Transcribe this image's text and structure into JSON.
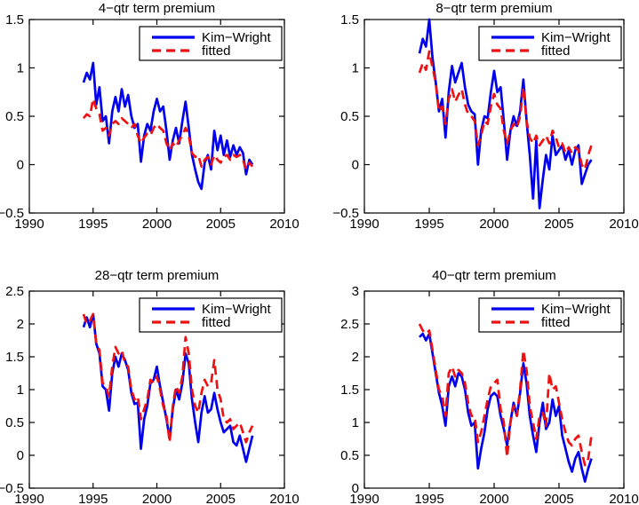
{
  "figure": {
    "background": "#ffffff",
    "line_colors": {
      "kim_wright": "#0000ee",
      "fitted": "#ee1111"
    }
  },
  "chart_data": [
    {
      "type": "line",
      "title": "4−qtr term premium",
      "xlabel": "",
      "ylabel": "",
      "xlim": [
        1990,
        2010
      ],
      "ylim": [
        -0.5,
        1.5
      ],
      "xticks": [
        1990,
        1995,
        2000,
        2005,
        2010
      ],
      "xtick_labels": [
        "1990",
        "1995",
        "2000",
        "2005",
        "2010"
      ],
      "yticks": [
        1.5,
        1,
        0.5,
        0,
        -0.5
      ],
      "ytick_labels": [
        "1.5",
        "1",
        "0.5",
        "0",
        "−0.5"
      ],
      "grid": false,
      "legend_position": "top-right",
      "x_start": 1994.25,
      "x_step": 0.25,
      "series": [
        {
          "id": "kim-wright",
          "name": "Kim−Wright",
          "color": "#0000ee",
          "style": "solid",
          "values": [
            0.85,
            0.95,
            0.88,
            1.05,
            0.62,
            0.8,
            0.45,
            0.5,
            0.22,
            0.55,
            0.7,
            0.55,
            0.78,
            0.6,
            0.72,
            0.5,
            0.38,
            0.42,
            0.03,
            0.3,
            0.42,
            0.35,
            0.55,
            0.68,
            0.55,
            0.6,
            0.35,
            0.05,
            0.25,
            0.38,
            0.22,
            0.45,
            0.65,
            0.38,
            0.1,
            -0.05,
            -0.18,
            -0.25,
            0.02,
            0.1,
            -0.05,
            0.35,
            0.15,
            0.3,
            0.1,
            0.25,
            0.08,
            0.2,
            0.1,
            0.18,
            0.12,
            -0.1,
            0.05,
            0.0
          ]
        },
        {
          "id": "fitted",
          "name": "fitted",
          "color": "#ee1111",
          "style": "dashed",
          "values": [
            0.48,
            0.52,
            0.5,
            0.68,
            0.58,
            0.52,
            0.35,
            0.38,
            0.3,
            0.42,
            0.45,
            0.42,
            0.48,
            0.45,
            0.42,
            0.38,
            0.42,
            0.3,
            0.22,
            0.28,
            0.32,
            0.3,
            0.38,
            0.42,
            0.38,
            0.35,
            0.22,
            0.15,
            0.22,
            0.18,
            0.25,
            0.3,
            0.38,
            0.3,
            0.12,
            0.08,
            0.1,
            -0.02,
            0.05,
            0.08,
            0.0,
            0.1,
            0.05,
            0.02,
            0.08,
            0.1,
            0.05,
            0.1,
            0.08,
            0.1,
            0.05,
            -0.05,
            0.02,
            -0.02
          ]
        }
      ]
    },
    {
      "type": "line",
      "title": "8−qtr term premium",
      "xlabel": "",
      "ylabel": "",
      "xlim": [
        1990,
        2010
      ],
      "ylim": [
        -0.5,
        1.5
      ],
      "xticks": [
        1990,
        1995,
        2000,
        2005,
        2010
      ],
      "xtick_labels": [
        "1990",
        "1995",
        "2000",
        "2005",
        "2010"
      ],
      "yticks": [
        1.5,
        1,
        0.5,
        0,
        -0.5
      ],
      "ytick_labels": [
        "1.5",
        "1",
        "0.5",
        "0",
        "−0.5"
      ],
      "grid": false,
      "legend_position": "top-right",
      "x_start": 1994.25,
      "x_step": 0.25,
      "series": [
        {
          "id": "kim-wright",
          "name": "Kim−Wright",
          "color": "#0000ee",
          "style": "solid",
          "values": [
            1.15,
            1.3,
            1.22,
            1.5,
            1.1,
            0.85,
            0.55,
            0.68,
            0.28,
            0.75,
            1.02,
            0.85,
            0.95,
            1.05,
            0.8,
            0.62,
            0.55,
            0.52,
            0.0,
            0.35,
            0.5,
            0.48,
            0.75,
            0.97,
            0.75,
            0.8,
            0.45,
            0.05,
            0.35,
            0.5,
            0.4,
            0.55,
            0.88,
            0.45,
            0.1,
            -0.35,
            0.25,
            -0.45,
            -0.15,
            0.1,
            -0.05,
            0.3,
            0.1,
            0.15,
            0.2,
            0.05,
            0.15,
            0.0,
            0.15,
            0.2,
            -0.2,
            -0.1,
            0.0,
            0.05
          ]
        },
        {
          "id": "fitted",
          "name": "fitted",
          "color": "#ee1111",
          "style": "dashed",
          "values": [
            0.95,
            1.05,
            0.98,
            1.17,
            1.0,
            0.85,
            0.55,
            0.6,
            0.42,
            0.68,
            0.78,
            0.65,
            0.72,
            0.78,
            0.62,
            0.52,
            0.5,
            0.45,
            0.2,
            0.3,
            0.45,
            0.42,
            0.6,
            0.73,
            0.62,
            0.58,
            0.35,
            0.22,
            0.35,
            0.42,
            0.38,
            0.5,
            0.8,
            0.45,
            0.28,
            0.22,
            0.3,
            0.2,
            0.25,
            0.3,
            0.22,
            0.35,
            0.28,
            0.18,
            0.22,
            0.12,
            0.18,
            0.12,
            0.18,
            0.15,
            0.0,
            -0.05,
            0.1,
            0.2
          ]
        }
      ]
    },
    {
      "type": "line",
      "title": "28−qtr term premium",
      "xlabel": "",
      "ylabel": "",
      "xlim": [
        1990,
        2010
      ],
      "ylim": [
        -0.5,
        2.5
      ],
      "xticks": [
        1990,
        1995,
        2000,
        2005,
        2010
      ],
      "xtick_labels": [
        "1990",
        "1995",
        "2000",
        "2005",
        "2010"
      ],
      "yticks": [
        2.5,
        2,
        1.5,
        1,
        0.5,
        0,
        -0.5
      ],
      "ytick_labels": [
        "2.5",
        "2",
        "1.5",
        "1",
        "0.5",
        "0",
        "−0.5"
      ],
      "grid": false,
      "legend_position": "top-right",
      "x_start": 1994.25,
      "x_step": 0.25,
      "series": [
        {
          "id": "kim-wright",
          "name": "Kim−Wright",
          "color": "#0000ee",
          "style": "solid",
          "values": [
            1.95,
            2.1,
            1.95,
            2.15,
            1.7,
            1.55,
            1.05,
            1.0,
            0.68,
            1.25,
            1.5,
            1.35,
            1.55,
            1.45,
            1.3,
            0.95,
            0.78,
            0.8,
            0.1,
            0.55,
            0.75,
            1.1,
            1.15,
            1.35,
            1.05,
            0.8,
            0.55,
            0.25,
            0.7,
            1.0,
            0.85,
            1.1,
            1.55,
            1.4,
            0.85,
            0.5,
            0.2,
            0.65,
            0.9,
            0.65,
            0.7,
            0.95,
            0.7,
            0.5,
            0.35,
            0.4,
            0.45,
            0.2,
            0.15,
            0.3,
            0.1,
            -0.1,
            0.1,
            0.3
          ]
        },
        {
          "id": "fitted",
          "name": "fitted",
          "color": "#ee1111",
          "style": "dashed",
          "values": [
            2.15,
            2.0,
            2.05,
            2.15,
            1.7,
            1.6,
            1.1,
            1.05,
            0.9,
            1.35,
            1.65,
            1.55,
            1.6,
            1.4,
            1.35,
            1.0,
            0.85,
            0.9,
            0.55,
            0.7,
            0.85,
            1.15,
            1.1,
            1.2,
            1.0,
            0.75,
            0.6,
            0.2,
            0.75,
            1.05,
            0.95,
            1.2,
            1.8,
            1.55,
            1.0,
            0.75,
            0.65,
            0.95,
            1.15,
            1.05,
            1.1,
            1.45,
            1.0,
            0.85,
            0.55,
            0.5,
            0.55,
            0.4,
            0.45,
            0.5,
            0.35,
            0.2,
            0.35,
            0.45
          ]
        }
      ]
    },
    {
      "type": "line",
      "title": "40−qtr term premium",
      "xlabel": "",
      "ylabel": "",
      "xlim": [
        1990,
        2010
      ],
      "ylim": [
        0,
        3
      ],
      "xticks": [
        1990,
        1995,
        2000,
        2005,
        2010
      ],
      "xtick_labels": [
        "1990",
        "1995",
        "2000",
        "2005",
        "2010"
      ],
      "yticks": [
        3,
        2.5,
        2,
        1.5,
        1,
        0.5,
        0
      ],
      "ytick_labels": [
        "3",
        "2.5",
        "2",
        "1.5",
        "1",
        "0.5",
        "0"
      ],
      "grid": false,
      "legend_position": "top-right",
      "x_start": 1994.25,
      "x_step": 0.25,
      "series": [
        {
          "id": "kim-wright",
          "name": "Kim−Wright",
          "color": "#0000ee",
          "style": "solid",
          "values": [
            2.3,
            2.35,
            2.25,
            2.35,
            2.05,
            1.75,
            1.45,
            1.25,
            0.95,
            1.55,
            1.7,
            1.55,
            1.75,
            1.7,
            1.5,
            1.15,
            0.95,
            1.0,
            0.3,
            0.6,
            0.85,
            1.2,
            1.4,
            1.45,
            1.4,
            1.1,
            0.9,
            0.65,
            1.0,
            1.3,
            1.1,
            1.45,
            1.9,
            1.6,
            1.1,
            0.8,
            0.55,
            1.0,
            1.3,
            0.9,
            1.0,
            1.35,
            1.1,
            1.25,
            0.8,
            0.6,
            0.4,
            0.25,
            0.45,
            0.55,
            0.3,
            0.1,
            0.3,
            0.45
          ]
        },
        {
          "id": "fitted",
          "name": "fitted",
          "color": "#ee1111",
          "style": "dashed",
          "values": [
            2.5,
            2.4,
            2.35,
            2.4,
            2.1,
            1.8,
            1.5,
            1.4,
            1.1,
            1.75,
            1.85,
            1.7,
            1.8,
            1.75,
            1.6,
            1.3,
            1.1,
            1.1,
            0.7,
            0.85,
            1.1,
            1.35,
            1.55,
            1.6,
            1.65,
            1.2,
            1.0,
            0.47,
            1.0,
            1.25,
            1.1,
            1.5,
            2.1,
            1.8,
            1.25,
            1.0,
            0.75,
            1.1,
            1.15,
            0.95,
            1.75,
            1.5,
            1.55,
            1.3,
            1.05,
            0.85,
            0.7,
            0.65,
            0.75,
            0.8,
            0.55,
            0.35,
            0.45,
            0.8
          ]
        }
      ]
    }
  ]
}
